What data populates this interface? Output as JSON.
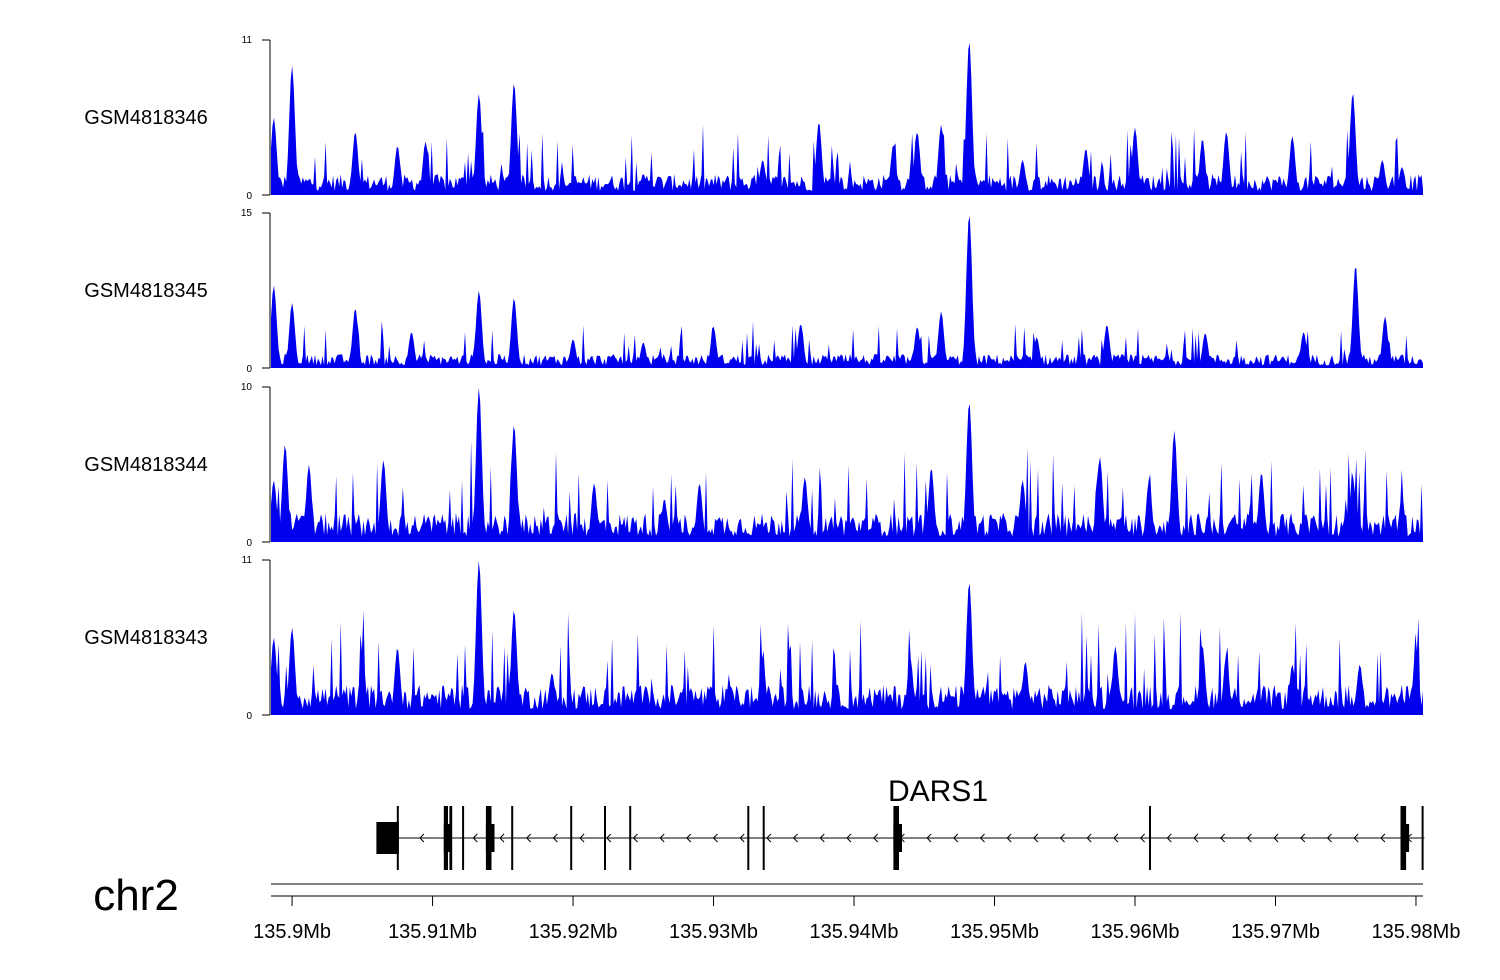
{
  "chart_data": {
    "type": "area",
    "chromosome": "chr2",
    "x_unit": "Mb",
    "xlim": [
      135.8985,
      135.9805
    ],
    "x_ticks": [
      135.9,
      135.91,
      135.92,
      135.93,
      135.94,
      135.95,
      135.96,
      135.97,
      135.98
    ],
    "x_tick_labels": [
      "135.9Mb",
      "135.91Mb",
      "135.92Mb",
      "135.93Mb",
      "135.94Mb",
      "135.95Mb",
      "135.96Mb",
      "135.97Mb",
      "135.98Mb"
    ],
    "series_color": "#0000ee",
    "tracks": [
      {
        "name": "GSM4818346",
        "ymax": 11,
        "peaks": [
          [
            135.8987,
            5.5
          ],
          [
            135.9,
            9.2
          ],
          [
            135.9045,
            4.5
          ],
          [
            135.9075,
            3.5
          ],
          [
            135.9095,
            3.8
          ],
          [
            135.9133,
            7.2
          ],
          [
            135.9158,
            8.0
          ],
          [
            135.925,
            1.5
          ],
          [
            135.9335,
            2.5
          ],
          [
            135.9375,
            5.2
          ],
          [
            135.9428,
            3.6
          ],
          [
            135.9445,
            4.5
          ],
          [
            135.9462,
            5.0
          ],
          [
            135.9482,
            11.0
          ],
          [
            135.952,
            2.5
          ],
          [
            135.9565,
            3.3
          ],
          [
            135.96,
            4.8
          ],
          [
            135.9648,
            4.0
          ],
          [
            135.9665,
            4.5
          ],
          [
            135.9712,
            4.2
          ],
          [
            135.9755,
            7.3
          ],
          [
            135.9776,
            2.5
          ],
          [
            135.979,
            2.0
          ]
        ],
        "baseline": 1.1
      },
      {
        "name": "GSM4818345",
        "ymax": 15,
        "peaks": [
          [
            135.8987,
            8.0
          ],
          [
            135.9,
            6.3
          ],
          [
            135.9045,
            5.8
          ],
          [
            135.9085,
            3.5
          ],
          [
            135.9133,
            7.5
          ],
          [
            135.9158,
            6.8
          ],
          [
            135.92,
            2.8
          ],
          [
            135.925,
            2.5
          ],
          [
            135.93,
            4.0
          ],
          [
            135.9362,
            4.3
          ],
          [
            135.9445,
            4.0
          ],
          [
            135.9462,
            5.5
          ],
          [
            135.9482,
            15.0
          ],
          [
            135.953,
            3.0
          ],
          [
            135.958,
            4.2
          ],
          [
            135.965,
            3.4
          ],
          [
            135.972,
            3.5
          ],
          [
            135.9757,
            10.0
          ],
          [
            135.9778,
            5.0
          ]
        ],
        "baseline": 1.0
      },
      {
        "name": "GSM4818344",
        "ymax": 10,
        "peaks": [
          [
            135.8987,
            4.0
          ],
          [
            135.8995,
            6.3
          ],
          [
            135.9012,
            5.0
          ],
          [
            135.9065,
            5.3
          ],
          [
            135.9133,
            10.0
          ],
          [
            135.9158,
            7.6
          ],
          [
            135.9215,
            3.8
          ],
          [
            135.9265,
            2.8
          ],
          [
            135.929,
            3.8
          ],
          [
            135.9365,
            4.2
          ],
          [
            135.9455,
            4.8
          ],
          [
            135.9482,
            9.1
          ],
          [
            135.952,
            4.0
          ],
          [
            135.9575,
            5.5
          ],
          [
            135.961,
            4.0
          ],
          [
            135.9628,
            7.2
          ],
          [
            135.969,
            4.5
          ],
          [
            135.9755,
            4.2
          ],
          [
            135.979,
            3.0
          ]
        ],
        "baseline": 1.4
      },
      {
        "name": "GSM4818343",
        "ymax": 11,
        "peaks": [
          [
            135.8987,
            5.5
          ],
          [
            135.9,
            6.2
          ],
          [
            135.905,
            4.6
          ],
          [
            135.9075,
            4.8
          ],
          [
            135.9133,
            11.0
          ],
          [
            135.9158,
            7.5
          ],
          [
            135.9185,
            3.0
          ],
          [
            135.9252,
            2.0
          ],
          [
            135.9335,
            4.1
          ],
          [
            135.944,
            4.1
          ],
          [
            135.9482,
            9.5
          ],
          [
            135.9522,
            3.8
          ],
          [
            135.9586,
            4.9
          ],
          [
            135.9648,
            4.9
          ],
          [
            135.9665,
            4.3
          ],
          [
            135.9712,
            3.6
          ],
          [
            135.976,
            3.6
          ],
          [
            135.98,
            4.8
          ]
        ],
        "baseline": 1.6
      }
    ],
    "gene": {
      "name": "DARS1",
      "strand": "-",
      "start": 135.906,
      "end": 135.9806,
      "exons": [
        [
          135.906,
          135.9076
        ],
        [
          135.9108,
          135.9111
        ],
        [
          135.9112,
          135.9114
        ],
        [
          135.9121,
          135.9122
        ],
        [
          135.9138,
          135.9142
        ],
        [
          135.9156,
          135.9157
        ],
        [
          135.9198,
          135.9199
        ],
        [
          135.9222,
          135.9223
        ],
        [
          135.924,
          135.9241
        ],
        [
          135.9324,
          135.9325
        ],
        [
          135.9335,
          135.9336
        ],
        [
          135.9428,
          135.9432
        ],
        [
          135.961,
          135.9611
        ],
        [
          135.9789,
          135.9793
        ],
        [
          135.9804,
          135.9805
        ]
      ]
    }
  }
}
